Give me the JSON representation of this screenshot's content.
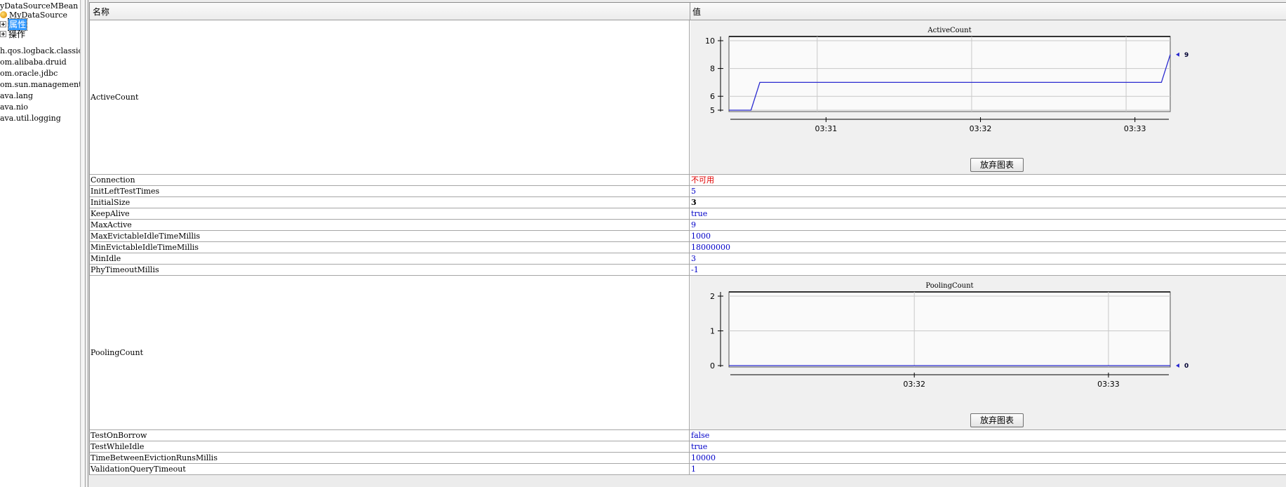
{
  "tree": {
    "items": [
      {
        "label": "yDataSourceMBean"
      },
      {
        "label": "MyDataSource",
        "icon": "bean-icon"
      },
      {
        "label": "属性",
        "selected": true
      },
      {
        "label": "操作"
      },
      {
        "label": "h.qos.logback.classic"
      },
      {
        "label": "om.alibaba.druid"
      },
      {
        "label": "om.oracle.jdbc"
      },
      {
        "label": "om.sun.management"
      },
      {
        "label": "ava.lang"
      },
      {
        "label": "ava.nio"
      },
      {
        "label": "ava.util.logging"
      }
    ]
  },
  "table": {
    "header": {
      "name": "名称",
      "value": "值"
    },
    "active_count": {
      "name": "ActiveCount"
    },
    "rows_a": [
      {
        "name": "Connection",
        "value": "不可用"
      },
      {
        "name": "InitLeftTestTimes",
        "value": "5"
      },
      {
        "name": "InitialSize",
        "value": "3"
      },
      {
        "name": "KeepAlive",
        "value": "true"
      },
      {
        "name": "MaxActive",
        "value": "9"
      },
      {
        "name": "MaxEvictableIdleTimeMillis",
        "value": "1000"
      },
      {
        "name": "MinEvictableIdleTimeMillis",
        "value": "18000000"
      },
      {
        "name": "MinIdle",
        "value": "3"
      },
      {
        "name": "PhyTimeoutMillis",
        "value": "-1"
      }
    ],
    "pooling_count": {
      "name": "PoolingCount"
    },
    "rows_b": [
      {
        "name": "TestOnBorrow",
        "value": "false"
      },
      {
        "name": "TestWhileIdle",
        "value": "true"
      },
      {
        "name": "TimeBetweenEvictionRunsMillis",
        "value": "10000"
      },
      {
        "name": "ValidationQueryTimeout",
        "value": "1"
      }
    ],
    "discard_chart_label": "放弃图表"
  },
  "colors": {
    "line": "#2a2ad0",
    "error": "#e00000",
    "value": "#0000c8"
  },
  "chart_data": [
    {
      "type": "line",
      "title": "ActiveCount",
      "ylim": [
        5,
        10
      ],
      "yticks": [
        5,
        6,
        8,
        10
      ],
      "xlim": [
        0,
        10
      ],
      "xticks": [
        {
          "x": 2.2,
          "label": "03:31"
        },
        {
          "x": 5.7,
          "label": "03:32"
        },
        {
          "x": 9.2,
          "label": "03:33"
        }
      ],
      "gridx": [
        2.0,
        5.5,
        9.0
      ],
      "series": [
        {
          "x": [
            0,
            0.5,
            0.7,
            9.8,
            10
          ],
          "values": [
            5,
            5,
            7,
            7,
            9
          ]
        }
      ],
      "current_value": "9"
    },
    {
      "type": "line",
      "title": "PoolingCount",
      "ylim": [
        0,
        2
      ],
      "yticks": [
        0,
        1,
        2
      ],
      "xlim": [
        0,
        10
      ],
      "xticks": [
        {
          "x": 4.2,
          "label": "03:32"
        },
        {
          "x": 8.6,
          "label": "03:33"
        }
      ],
      "gridx": [
        4.2,
        8.6
      ],
      "series": [
        {
          "x": [
            0,
            10
          ],
          "values": [
            0,
            0
          ]
        }
      ],
      "current_value": "0"
    }
  ]
}
